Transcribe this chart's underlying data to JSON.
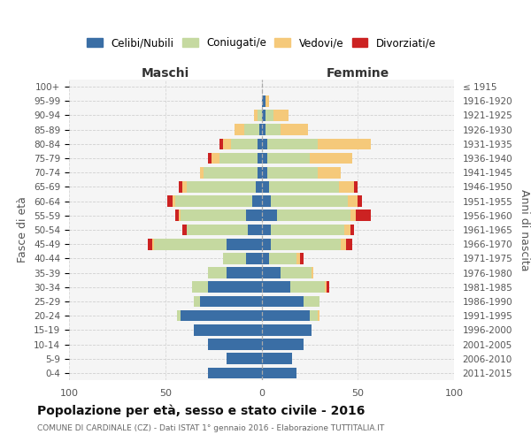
{
  "age_groups": [
    "100+",
    "95-99",
    "90-94",
    "85-89",
    "80-84",
    "75-79",
    "70-74",
    "65-69",
    "60-64",
    "55-59",
    "50-54",
    "45-49",
    "40-44",
    "35-39",
    "30-34",
    "25-29",
    "20-24",
    "15-19",
    "10-14",
    "5-9",
    "0-4"
  ],
  "birth_years": [
    "≤ 1915",
    "1916-1920",
    "1921-1925",
    "1926-1930",
    "1931-1935",
    "1936-1940",
    "1941-1945",
    "1946-1950",
    "1951-1955",
    "1956-1960",
    "1961-1965",
    "1966-1970",
    "1971-1975",
    "1976-1980",
    "1981-1985",
    "1986-1990",
    "1991-1995",
    "1996-2000",
    "2001-2005",
    "2006-2010",
    "2011-2015"
  ],
  "males_celibe": [
    0,
    0,
    0,
    1,
    2,
    2,
    2,
    3,
    5,
    8,
    7,
    18,
    8,
    18,
    28,
    32,
    42,
    35,
    28,
    18,
    28
  ],
  "males_coniugato": [
    0,
    0,
    2,
    8,
    14,
    20,
    28,
    36,
    40,
    34,
    32,
    38,
    12,
    10,
    8,
    3,
    2,
    0,
    0,
    0,
    0
  ],
  "males_vedovo": [
    0,
    0,
    2,
    5,
    4,
    4,
    2,
    2,
    1,
    1,
    0,
    1,
    0,
    0,
    0,
    0,
    0,
    0,
    0,
    0,
    0
  ],
  "males_divorziato": [
    0,
    0,
    0,
    0,
    2,
    2,
    0,
    2,
    3,
    2,
    2,
    2,
    0,
    0,
    0,
    0,
    0,
    0,
    0,
    0,
    0
  ],
  "females_nubile": [
    0,
    2,
    2,
    2,
    3,
    3,
    3,
    4,
    5,
    8,
    5,
    5,
    4,
    10,
    15,
    22,
    25,
    26,
    22,
    16,
    18
  ],
  "females_coniugata": [
    0,
    0,
    4,
    8,
    26,
    22,
    26,
    36,
    40,
    38,
    38,
    36,
    14,
    16,
    18,
    8,
    4,
    0,
    0,
    0,
    0
  ],
  "females_vedova": [
    0,
    2,
    8,
    14,
    28,
    22,
    12,
    8,
    5,
    3,
    3,
    3,
    2,
    1,
    1,
    0,
    1,
    0,
    0,
    0,
    0
  ],
  "females_divorziata": [
    0,
    0,
    0,
    0,
    0,
    0,
    0,
    2,
    2,
    8,
    2,
    3,
    2,
    0,
    1,
    0,
    0,
    0,
    0,
    0,
    0
  ],
  "color_celibe": "#3a6ea5",
  "color_coniugato": "#c5d9a0",
  "color_vedovo": "#f5c97a",
  "color_divorziato": "#cc2222",
  "bg_color": "#f5f5f5",
  "grid_color": "#cccccc",
  "title": "Popolazione per età, sesso e stato civile - 2016",
  "subtitle": "COMUNE DI CARDINALE (CZ) - Dati ISTAT 1° gennaio 2016 - Elaborazione TUTTITALIA.IT",
  "label_maschi": "Maschi",
  "label_femmine": "Femmine",
  "label_fasce": "Fasce di età",
  "label_anni": "Anni di nascita",
  "legend_labels": [
    "Celibi/Nubili",
    "Coniugati/e",
    "Vedovi/e",
    "Divorziati/e"
  ],
  "xlim": 100
}
